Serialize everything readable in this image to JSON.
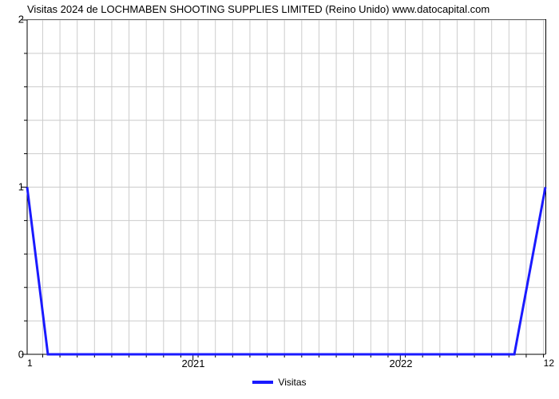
{
  "chart": {
    "type": "line",
    "title": "Visitas 2024 de LOCHMABEN SHOOTING SUPPLIES LIMITED (Reino Unido) www.datocapital.com",
    "title_fontsize": 13,
    "background_color": "#ffffff",
    "grid_color": "#cccccc",
    "axis_color": "#000000",
    "ylim": [
      0,
      2
    ],
    "ytick_major": [
      0,
      1,
      2
    ],
    "ytick_minor_count_between": 4,
    "xlim": [
      2020.2,
      2022.7
    ],
    "x_major_ticks": [
      "2021",
      "2022"
    ],
    "x_major_positions": [
      2021,
      2022
    ],
    "x_minor_step": 0.0833,
    "x_left_label": "1",
    "x_right_label": "12",
    "series": {
      "label": "Visitas",
      "color": "#1a1aff",
      "line_width": 3,
      "points_x": [
        2020.2,
        2020.3,
        2022.55,
        2022.7
      ],
      "points_y": [
        1.0,
        0.0,
        0.0,
        1.0
      ]
    },
    "legend": {
      "position": "bottom-center",
      "fontsize": 12
    }
  }
}
